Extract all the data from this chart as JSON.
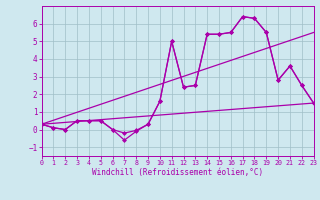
{
  "xlabel": "Windchill (Refroidissement éolien,°C)",
  "background_color": "#cfe8ef",
  "grid_color": "#a0bfc8",
  "line_color": "#aa00aa",
  "ylim": [
    -1.5,
    7.0
  ],
  "xlim": [
    0,
    23
  ],
  "xticks": [
    0,
    1,
    2,
    3,
    4,
    5,
    6,
    7,
    8,
    9,
    10,
    11,
    12,
    13,
    14,
    15,
    16,
    17,
    18,
    19,
    20,
    21,
    22,
    23
  ],
  "yticks": [
    -1,
    0,
    1,
    2,
    3,
    4,
    5,
    6
  ],
  "line1_y": [
    0.3,
    0.1,
    0.0,
    0.5,
    0.5,
    0.5,
    0.0,
    -0.2,
    -0.05,
    0.3,
    1.6,
    5.0,
    2.4,
    2.5,
    5.4,
    5.4,
    5.5,
    6.4,
    6.3,
    5.5,
    2.8,
    3.6,
    2.5,
    1.5
  ],
  "line2_y": [
    0.3,
    0.1,
    0.0,
    0.5,
    0.5,
    0.5,
    0.0,
    -0.6,
    -0.1,
    0.3,
    1.6,
    5.0,
    2.4,
    2.5,
    5.4,
    5.4,
    5.5,
    6.4,
    6.3,
    5.5,
    2.8,
    3.6,
    2.5,
    1.5
  ],
  "trend1_x": [
    0,
    23
  ],
  "trend1_y": [
    0.3,
    1.5
  ],
  "trend2_x": [
    0,
    23
  ],
  "trend2_y": [
    0.3,
    5.5
  ],
  "marker": "D",
  "markersize": 2.5,
  "linewidth": 0.9
}
